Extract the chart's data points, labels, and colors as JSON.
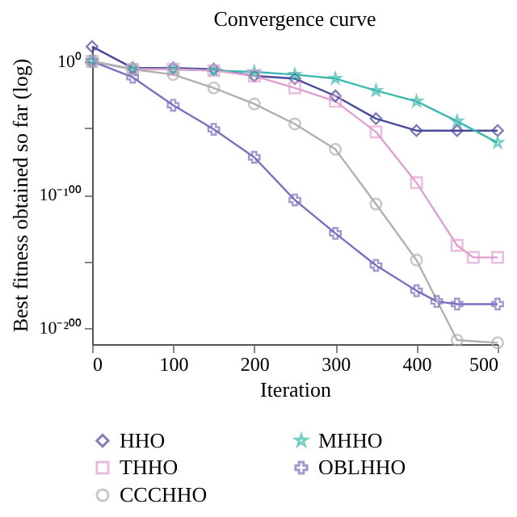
{
  "chart_data": {
    "type": "line",
    "title": "Convergence curve",
    "xlabel": "Iteration",
    "ylabel": "Best fitness obtained so far (log)",
    "log": "y",
    "grid": false,
    "legend": "bottom",
    "line_style": "solid",
    "xlim": [
      0,
      500
    ],
    "xticks": [
      0,
      100,
      200,
      300,
      400,
      500
    ],
    "ylim": [
      1e-212,
      1000000000000.0
    ],
    "yticks": [
      {
        "value": 1,
        "label": "10⁰"
      },
      {
        "value": 1e-50,
        "label": null
      },
      {
        "value": 1e-100,
        "label": "10⁻¹⁰⁰"
      },
      {
        "value": 1e-150,
        "label": null
      },
      {
        "value": 1e-200,
        "label": "10⁻²⁰⁰"
      }
    ],
    "series": [
      {
        "name": "HHO",
        "color": "#4a4a9a",
        "marker": "diamond",
        "x": [
          0,
          50,
          100,
          150,
          200,
          250,
          300,
          350,
          400,
          450,
          500
        ],
        "values": [
          100000000000.0,
          1e-05,
          1e-05,
          1e-06,
          1e-11,
          1e-13,
          1e-26,
          1e-43,
          1e-52,
          1e-52,
          1e-52
        ]
      },
      {
        "name": "MHHO",
        "color": "#3fb8b0",
        "marker": "star",
        "x": [
          0,
          50,
          100,
          150,
          200,
          250,
          300,
          350,
          400,
          450,
          500
        ],
        "values": [
          1,
          1e-06,
          1e-06,
          1e-07,
          1e-08,
          1e-10,
          1e-13,
          1e-22,
          1e-30,
          1e-45,
          1e-61
        ]
      },
      {
        "name": "THHO",
        "color": "#e0a0d0",
        "marker": "square",
        "x": [
          0,
          50,
          100,
          150,
          200,
          250,
          300,
          350,
          400,
          450,
          470,
          500
        ],
        "values": [
          1,
          1e-06,
          1e-06,
          1e-07,
          1e-11,
          1e-20,
          1e-30,
          1e-53,
          1e-91,
          1e-138,
          1e-147,
          1e-147
        ]
      },
      {
        "name": "OBLHHO",
        "color": "#7a70c0",
        "marker": "cross",
        "x": [
          0,
          50,
          100,
          150,
          200,
          250,
          300,
          350,
          400,
          425,
          450,
          500
        ],
        "values": [
          1,
          1e-12,
          1e-33,
          1e-51,
          1e-72,
          1e-104,
          1e-129,
          1e-153,
          1e-172,
          1e-180,
          1e-182,
          1e-182
        ]
      },
      {
        "name": "CCCHHO",
        "color": "#b0b0b0",
        "marker": "circle",
        "x": [
          0,
          50,
          100,
          150,
          200,
          250,
          300,
          350,
          400,
          450,
          500
        ],
        "values": [
          1,
          1e-06,
          1e-10,
          1e-20,
          1e-32,
          1e-47,
          1e-66,
          1e-107,
          1e-149,
          1e-209,
          1e-211
        ]
      }
    ]
  }
}
